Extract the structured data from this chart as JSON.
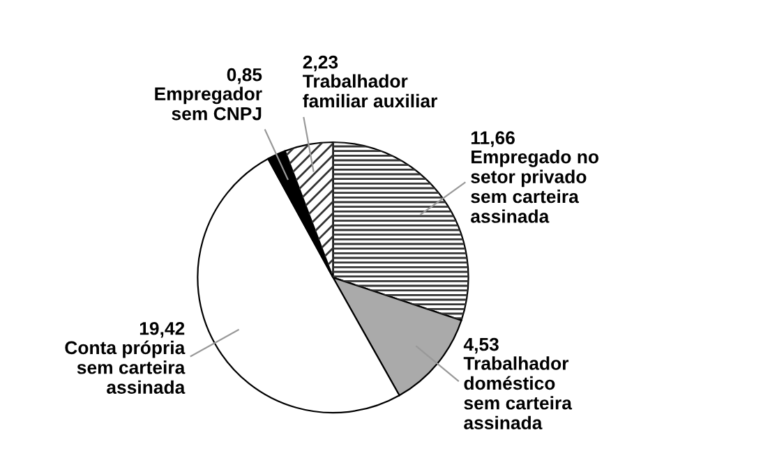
{
  "chart_data": {
    "type": "pie",
    "categories": [
      "Empregado no\nsetor privado\nsem carteira\nassinada",
      "Trabalhador\ndoméstico\nsem carteira\nassinada",
      "Conta própria\nsem carteira\nassinada",
      "Empregador\nsem CNPJ",
      "Trabalhador\nfamiliar auxiliar"
    ],
    "values": [
      11.66,
      4.53,
      19.42,
      0.85,
      2.23
    ],
    "value_labels": [
      "11,66",
      "4,53",
      "19,42",
      "0,85",
      "2,23"
    ],
    "colors": [
      "#ffffff",
      "#aaaaaa",
      "#ffffff",
      "#000000",
      "#ffffff"
    ]
  }
}
